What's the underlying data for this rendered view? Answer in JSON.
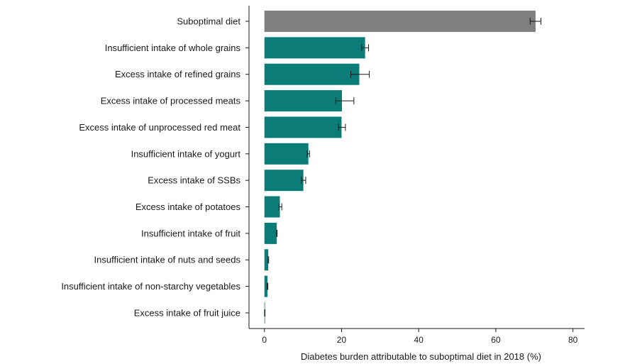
{
  "chart_data": {
    "type": "bar",
    "orientation": "horizontal",
    "categories": [
      "Suboptimal diet",
      "Insufficient intake of whole grains",
      "Excess intake of refined grains",
      "Excess intake of processed meats",
      "Excess intake of unprocessed red meat",
      "Insufficient intake of yogurt",
      "Excess intake of SSBs",
      "Excess intake of potatoes",
      "Insufficient intake of fruit",
      "Insufficient intake of nuts and seeds",
      "Insufficient intake of non-starchy vegetables",
      "Excess intake of fruit juice"
    ],
    "values": [
      70.3,
      26.1,
      24.6,
      20.1,
      20.0,
      11.4,
      10.1,
      4.0,
      3.2,
      1.0,
      0.8,
      0.1
    ],
    "error_low": [
      68.9,
      25.2,
      22.4,
      18.5,
      19.2,
      11.1,
      9.6,
      3.8,
      3.1,
      0.9,
      0.7,
      0.05
    ],
    "error_high": [
      71.7,
      27.0,
      27.2,
      23.2,
      21.0,
      11.7,
      10.7,
      4.5,
      3.3,
      1.1,
      0.9,
      0.15
    ],
    "xlabel": "Diabetes burden attributable to suboptimal diet in 2018 (%)",
    "xlim": [
      -4,
      83
    ],
    "xticks": [
      0,
      20,
      40,
      60,
      80
    ],
    "grid": false,
    "colors": {
      "total": "#7f7f7f",
      "component": "#0b7c78"
    }
  }
}
